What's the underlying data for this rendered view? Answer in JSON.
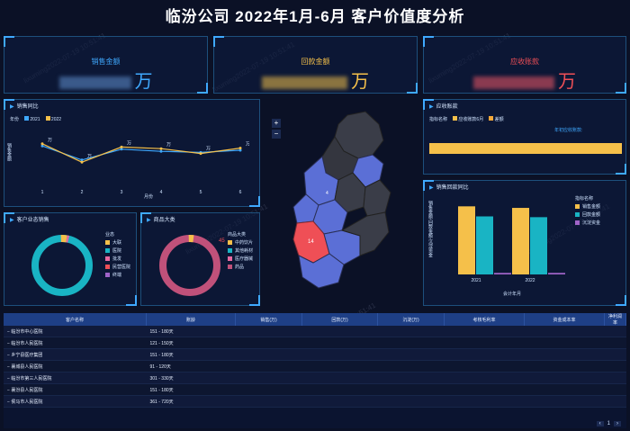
{
  "title": "临汾公司 2022年1月-6月 客户价值度分析",
  "watermark": "lixuming2022-07-19 10:51:41",
  "colors": {
    "accent": "#3fa9ff",
    "yellow": "#f5c04a",
    "teal": "#19b4c4",
    "red": "#ef4f56",
    "pink": "#c0517a"
  },
  "kpis": [
    {
      "label": "销售金额",
      "unit": "万",
      "color": "#3fa9ff"
    },
    {
      "label": "回款金额",
      "unit": "万",
      "color": "#f5c04a"
    },
    {
      "label": "应收账款",
      "unit": "万",
      "color": "#ef4f56"
    }
  ],
  "sales_trend": {
    "title": "销售同比",
    "legend_label": "年份",
    "series": [
      "2021",
      "2022"
    ],
    "ylabel": "销售金额",
    "xlabel": "月份",
    "unit": "万",
    "x": [
      "1",
      "2",
      "3",
      "4",
      "5",
      "6"
    ],
    "y_2021": [
      0.68,
      0.42,
      0.62,
      0.58,
      0.56,
      0.6
    ],
    "y_2022": [
      0.72,
      0.38,
      0.66,
      0.63,
      0.54,
      0.64
    ],
    "labels": [
      "万",
      "万",
      "万",
      "万",
      "万",
      "万"
    ]
  },
  "customer_business": {
    "title": "客户业态销售",
    "legend_title": "业态",
    "items": [
      "大联",
      "医院",
      "批发",
      "民营医院",
      "终端"
    ],
    "colors": [
      "#f5c04a",
      "#19b4c4",
      "#e86aa1",
      "#ef4f56",
      "#a064c8"
    ]
  },
  "product_category": {
    "title": "商品大类",
    "legend_title": "商品大类",
    "items": [
      "中药饮片",
      "其他耗材",
      "医疗器械",
      "药品"
    ],
    "colors": [
      "#f5c04a",
      "#19b4c4",
      "#e86aa1",
      "#c0517a"
    ],
    "label_value": "45"
  },
  "map": {
    "zoom_in": "+",
    "zoom_out": "−",
    "label_a": "4",
    "label_b": "14"
  },
  "receivables": {
    "title": "应收账款",
    "legend_label": "指标名称",
    "legend": [
      "应收账款6月",
      "差额"
    ],
    "note": "年初应收账款:"
  },
  "sales_collection": {
    "title": "销售回款同比",
    "ylabel": "销售金额·回款金额·沉淀资金",
    "xlabel": "会计年月",
    "legend_title": "指标名称",
    "legend": [
      "销售金额",
      "回款金额",
      "沉淀资金"
    ],
    "chart_data": {
      "type": "bar",
      "categories": [
        "2021",
        "2022"
      ],
      "series": [
        {
          "name": "销售金额",
          "values": [
            0.88,
            0.86
          ]
        },
        {
          "name": "回款金额",
          "values": [
            0.75,
            0.74
          ]
        },
        {
          "name": "沉淀资金",
          "values": [
            0.02,
            0.02
          ]
        }
      ]
    }
  },
  "table": {
    "columns": [
      "客户名称",
      "账龄",
      "销售(万)",
      "回款(万)",
      "沉淀(万)",
      "考核毛利率",
      "资金成本率",
      "净利润率"
    ],
    "rows": [
      {
        "name": "临汾市中心医院",
        "age": "151 - 180天"
      },
      {
        "name": "临汾市人民医院",
        "age": "121 - 150天"
      },
      {
        "name": "乡宁县医疗集团",
        "age": "151 - 180天"
      },
      {
        "name": "襄城县人民医院",
        "age": "91 - 120天"
      },
      {
        "name": "临汾市第三人民医院",
        "age": "301 - 330天"
      },
      {
        "name": "襄汾县人民医院",
        "age": "151 - 180天"
      },
      {
        "name": "侯马市人民医院",
        "age": "361 - 720天"
      }
    ],
    "pager": "1"
  }
}
